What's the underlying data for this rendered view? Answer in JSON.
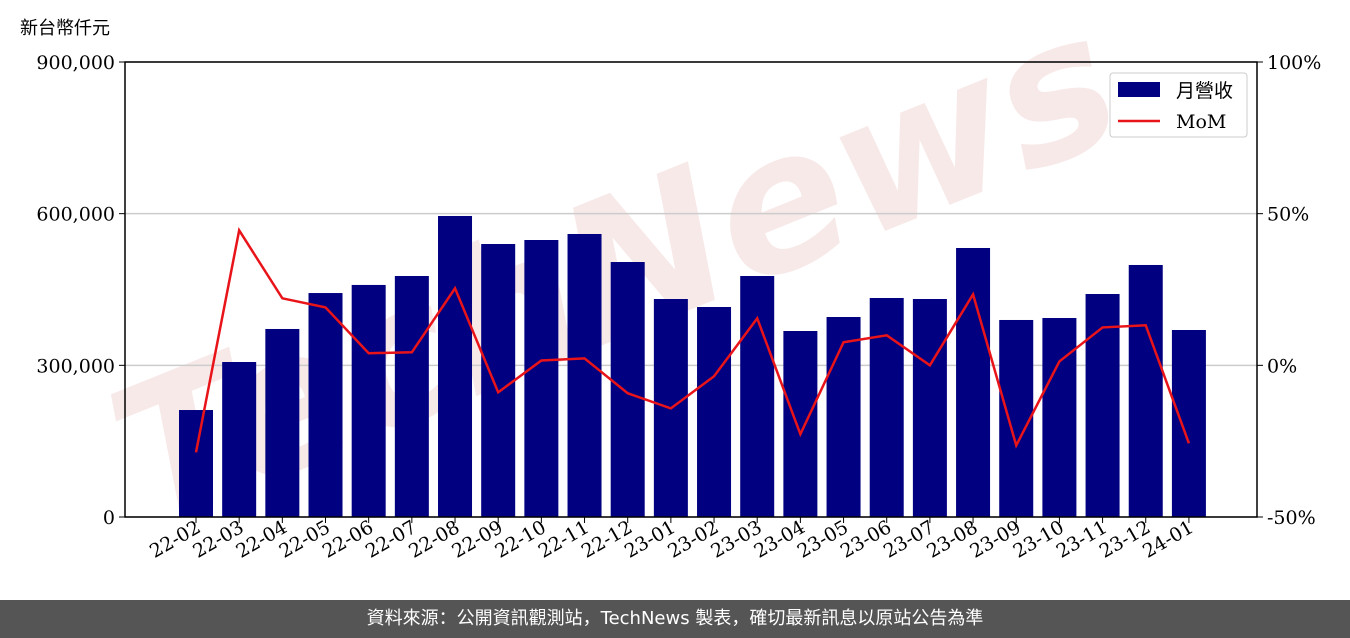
{
  "chart_data": {
    "type": "bar-line",
    "y_label": "新台幣仟元",
    "watermark": "TechNews",
    "categories": [
      "22-02",
      "22-03",
      "22-04",
      "22-05",
      "22-06",
      "22-07",
      "22-08",
      "22-09",
      "22-10",
      "22-11",
      "22-12",
      "23-01",
      "23-02",
      "23-03",
      "23-04",
      "23-05",
      "23-06",
      "23-07",
      "23-08",
      "23-09",
      "23-10",
      "23-11",
      "23-12",
      "24-01"
    ],
    "series": [
      {
        "name": "月營收",
        "type": "bar",
        "color": "#000080",
        "values": [
          211600,
          306600,
          371900,
          443000,
          459000,
          476700,
          595400,
          540000,
          547900,
          559800,
          504400,
          431200,
          415400,
          476700,
          367900,
          395600,
          433200,
          431200,
          532100,
          389700,
          393600,
          441100,
          498500,
          369900
        ]
      },
      {
        "name": "MoM",
        "type": "line",
        "axis": "y2",
        "color": "#e8141a",
        "values": [
          -28.7,
          44.5,
          22.1,
          19.1,
          4.0,
          4.3,
          25.4,
          -8.9,
          1.6,
          2.3,
          -9.2,
          -14.2,
          -3.6,
          15.5,
          -22.7,
          7.6,
          9.9,
          0,
          23.4,
          -26.4,
          1.3,
          12.5,
          13.2,
          -25.7
        ]
      }
    ],
    "ylim": [
      0,
      900000
    ],
    "yticks": [
      0,
      {
        "value": 300000,
        "label": "300,000"
      },
      {
        "value": 600000,
        "label": "600,000"
      },
      {
        "value": 900000,
        "label": "900,000"
      }
    ],
    "y2lim": [
      -50,
      100
    ],
    "y2ticks": [
      {
        "value": -50,
        "label": "-50%"
      },
      {
        "value": 0,
        "label": "0%"
      },
      {
        "value": 50,
        "label": "50%"
      },
      {
        "value": 100,
        "label": "100%"
      }
    ],
    "grid": true,
    "legend": "upper right"
  },
  "footer": "資料來源：公開資訊觀測站，TechNews 製表，確切最新訊息以原站公告為準"
}
